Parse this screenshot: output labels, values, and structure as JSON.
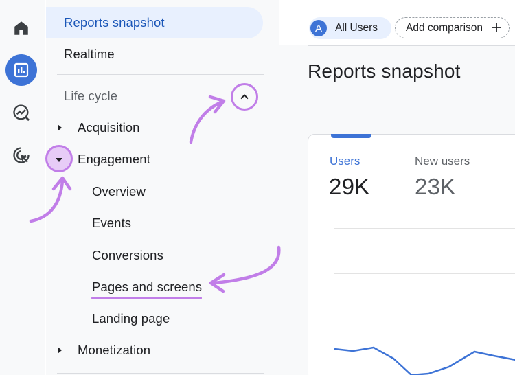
{
  "rail": {
    "items": [
      {
        "name": "home",
        "icon": "home-icon",
        "active": false
      },
      {
        "name": "reports",
        "icon": "bar-chart-icon",
        "active": true
      },
      {
        "name": "explore",
        "icon": "explore-icon",
        "active": false
      },
      {
        "name": "advertising",
        "icon": "advertising-icon",
        "active": false
      }
    ]
  },
  "nav": {
    "reports_snapshot": "Reports snapshot",
    "realtime": "Realtime",
    "section_label": "Life cycle",
    "acquisition": "Acquisition",
    "engagement": "Engagement",
    "engagement_children": [
      "Overview",
      "Events",
      "Conversions",
      "Pages and screens",
      "Landing page"
    ],
    "monetization": "Monetization"
  },
  "topbar": {
    "segment_avatar": "A",
    "segment_label": "All Users",
    "compare_label": "Add comparison"
  },
  "main": {
    "page_title": "Reports snapshot",
    "metrics": [
      {
        "label": "Users",
        "value": "29K"
      },
      {
        "label": "New users",
        "value": "23K"
      }
    ]
  },
  "colors": {
    "accent": "#3d73d6",
    "selected_bg": "#e8f0fe",
    "selected_text": "#1a56b8",
    "annotation": "#c17ee8"
  }
}
